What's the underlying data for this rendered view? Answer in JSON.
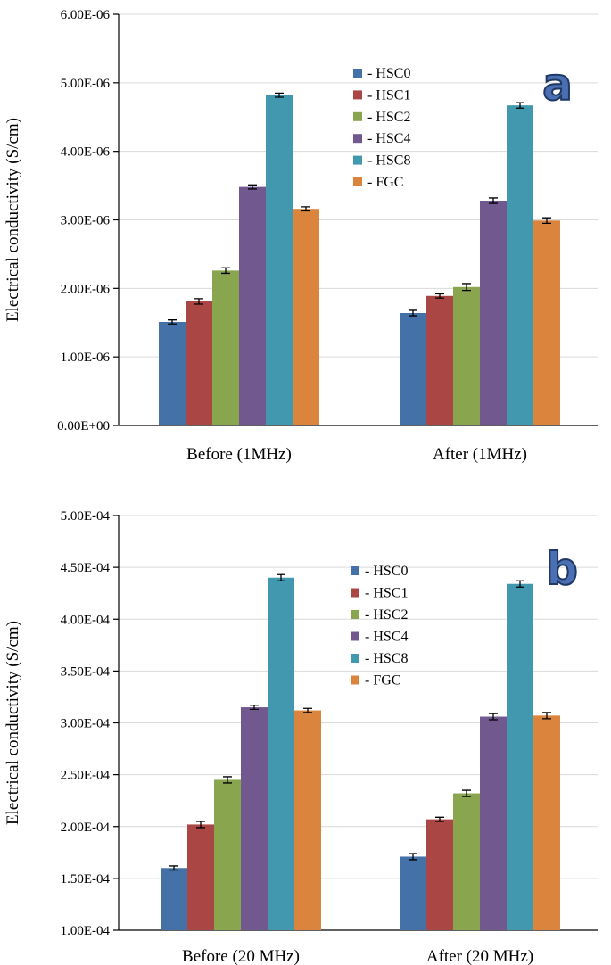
{
  "chart_data": [
    {
      "type": "bar",
      "panel_label": "a",
      "ylabel": "Electrical conductivity (S/cm)",
      "categories": [
        "Before (1MHz)",
        "After (1MHz)"
      ],
      "yticks": [
        "0.00E+00",
        "1.00E-06",
        "2.00E-06",
        "3.00E-06",
        "4.00E-06",
        "5.00E-06",
        "6.00E-06"
      ],
      "ylim": [
        0,
        6e-06
      ],
      "grid": true,
      "legend_position": "top-right",
      "series": [
        {
          "name": "- HSC0",
          "color": "#4472a8",
          "values": [
            1.51e-06,
            1.64e-06
          ],
          "errors": [
            3e-08,
            4e-08
          ]
        },
        {
          "name": "- HSC1",
          "color": "#aa4643",
          "values": [
            1.81e-06,
            1.89e-06
          ],
          "errors": [
            4e-08,
            3e-08
          ]
        },
        {
          "name": "- HSC2",
          "color": "#89a54e",
          "values": [
            2.26e-06,
            2.02e-06
          ],
          "errors": [
            4e-08,
            5e-08
          ]
        },
        {
          "name": "- HSC4",
          "color": "#71588f",
          "values": [
            3.48e-06,
            3.28e-06
          ],
          "errors": [
            3e-08,
            4e-08
          ]
        },
        {
          "name": "- HSC8",
          "color": "#4198af",
          "values": [
            4.82e-06,
            4.67e-06
          ],
          "errors": [
            3e-08,
            4e-08
          ]
        },
        {
          "name": "- FGC",
          "color": "#db843d",
          "values": [
            3.16e-06,
            2.99e-06
          ],
          "errors": [
            3e-08,
            4e-08
          ]
        }
      ]
    },
    {
      "type": "bar",
      "panel_label": "b",
      "ylabel": "Electrical conductivity (S/cm)",
      "categories": [
        "Before (20 MHz)",
        "After (20 MHz)"
      ],
      "yticks": [
        "1.00E-04",
        "1.50E-04",
        "2.00E-04",
        "2.50E-04",
        "3.00E-04",
        "3.50E-04",
        "4.00E-04",
        "4.50E-04",
        "5.00E-04"
      ],
      "ylim": [
        0.0001,
        0.0005
      ],
      "grid": true,
      "legend_position": "top-right",
      "series": [
        {
          "name": "- HSC0",
          "color": "#4472a8",
          "values": [
            0.00016,
            0.000171
          ],
          "errors": [
            2e-06,
            3e-06
          ]
        },
        {
          "name": "- HSC1",
          "color": "#aa4643",
          "values": [
            0.000202,
            0.000207
          ],
          "errors": [
            3e-06,
            2e-06
          ]
        },
        {
          "name": "- HSC2",
          "color": "#89a54e",
          "values": [
            0.000245,
            0.000232
          ],
          "errors": [
            3e-06,
            3e-06
          ]
        },
        {
          "name": "- HSC4",
          "color": "#71588f",
          "values": [
            0.000315,
            0.000306
          ],
          "errors": [
            2e-06,
            3e-06
          ]
        },
        {
          "name": "- HSC8",
          "color": "#4198af",
          "values": [
            0.00044,
            0.000434
          ],
          "errors": [
            3e-06,
            3e-06
          ]
        },
        {
          "name": "- FGC",
          "color": "#db843d",
          "values": [
            0.000312,
            0.000307
          ],
          "errors": [
            2e-06,
            3e-06
          ]
        }
      ]
    }
  ]
}
